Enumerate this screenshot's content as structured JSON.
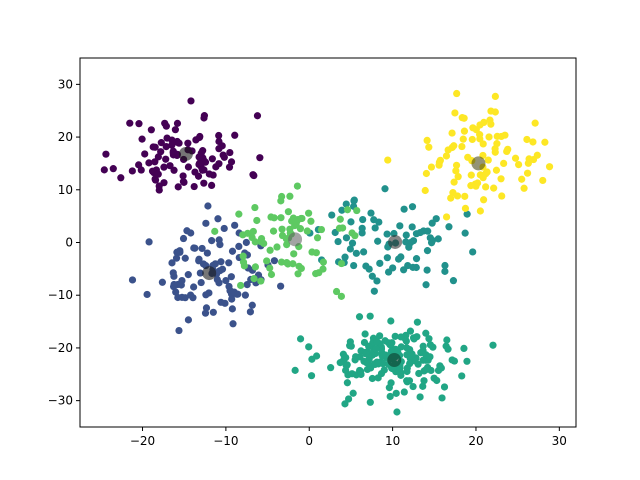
{
  "chart_data": {
    "type": "scatter",
    "title": "",
    "xlabel": "",
    "ylabel": "",
    "xlim": [
      -27.5,
      32
    ],
    "ylim": [
      -35,
      35
    ],
    "xticks": [
      -20,
      -10,
      0,
      10,
      20,
      30
    ],
    "yticks": [
      -30,
      -20,
      -10,
      0,
      10,
      20,
      30
    ],
    "grid": false,
    "legend": "none",
    "clusters": [
      {
        "color": "#440154",
        "center": [
          -15,
          16.5
        ],
        "spread": [
          3.8,
          3.8
        ],
        "count": 100,
        "seed": 11
      },
      {
        "color": "#3b528b",
        "center": [
          -12,
          -6
        ],
        "spread": [
          3.4,
          4.2
        ],
        "count": 100,
        "seed": 23
      },
      {
        "color": "#21918c",
        "center": [
          10,
          0
        ],
        "spread": [
          4.2,
          4.2
        ],
        "count": 80,
        "seed": 37
      },
      {
        "color": "#5ec962",
        "center": [
          -1.5,
          0.5
        ],
        "spread": [
          4.2,
          4.2
        ],
        "count": 80,
        "seed": 41
      },
      {
        "color": "#21a685",
        "center": [
          10,
          -22.5
        ],
        "spread": [
          4.4,
          3.4
        ],
        "count": 180,
        "seed": 53
      },
      {
        "color": "#fde725",
        "center": [
          20.5,
          15
        ],
        "spread": [
          3.8,
          5.0
        ],
        "count": 90,
        "seed": 67
      }
    ],
    "centroids": [
      {
        "x": -14.8,
        "y": 16.8,
        "color": "#1a1a1a"
      },
      {
        "x": -12.0,
        "y": -5.8,
        "color": "#1a1a1a"
      },
      {
        "x": -1.7,
        "y": 0.6,
        "color": "#666666"
      },
      {
        "x": 10.3,
        "y": 0.1,
        "color": "#333333"
      },
      {
        "x": 10.2,
        "y": -22.3,
        "color": "#0b3b2a"
      },
      {
        "x": 20.3,
        "y": 15.0,
        "color": "#4d4d1a"
      }
    ]
  }
}
